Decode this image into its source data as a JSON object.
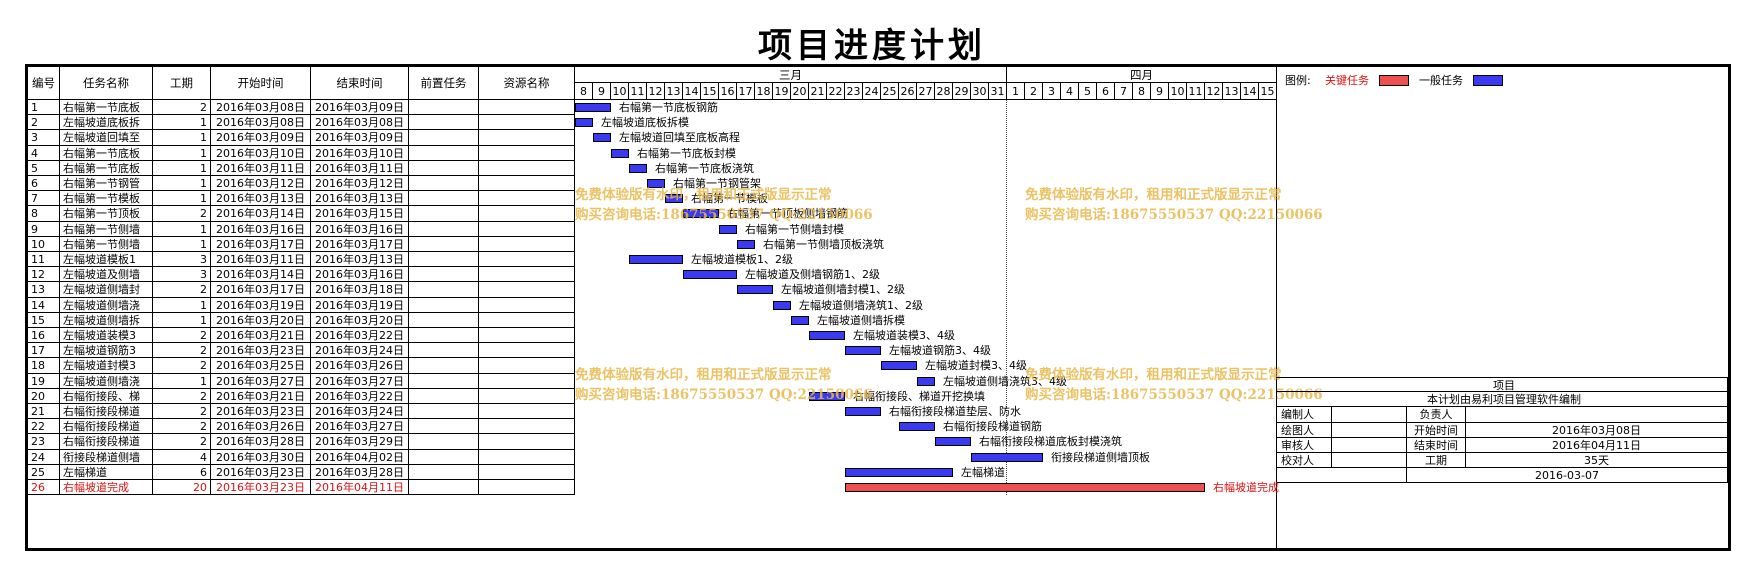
{
  "title": "项目进度计划",
  "columns": [
    "编号",
    "任务名称",
    "工期",
    "开始时间",
    "结束时间",
    "前置任务",
    "资源名称"
  ],
  "months": [
    {
      "label": "三月",
      "days": [
        "8",
        "9",
        "10",
        "11",
        "12",
        "13",
        "14",
        "15",
        "16",
        "17",
        "18",
        "19",
        "20",
        "21",
        "22",
        "23",
        "24",
        "25",
        "26",
        "27",
        "28",
        "29",
        "30",
        "31"
      ]
    },
    {
      "label": "四月",
      "days": [
        "1",
        "2",
        "3",
        "4",
        "5",
        "6",
        "7",
        "8",
        "9",
        "10",
        "11",
        "12",
        "13",
        "14",
        "15"
      ]
    }
  ],
  "legend": {
    "label": "图例:",
    "critical": "关键任务",
    "normal": "一般任务",
    "critical_color": "#ee5050",
    "normal_color": "#3a3af0"
  },
  "tasks": [
    {
      "id": "1",
      "name": "右幅第一节底板钢筋",
      "short": "右幅第一节底板",
      "duration": "2",
      "start": "2016年03月08日",
      "end": "2016年03月09日"
    },
    {
      "id": "2",
      "name": "左幅坡道底板拆模",
      "short": "左幅坡道底板拆",
      "duration": "1",
      "start": "2016年03月08日",
      "end": "2016年03月08日"
    },
    {
      "id": "3",
      "name": "左幅坡道回填至底板高程",
      "short": "左幅坡道回填至",
      "duration": "1",
      "start": "2016年03月09日",
      "end": "2016年03月09日"
    },
    {
      "id": "4",
      "name": "右幅第一节底板封模",
      "short": "右幅第一节底板",
      "duration": "1",
      "start": "2016年03月10日",
      "end": "2016年03月10日"
    },
    {
      "id": "5",
      "name": "右幅第一节底板浇筑",
      "short": "右幅第一节底板",
      "duration": "1",
      "start": "2016年03月11日",
      "end": "2016年03月11日"
    },
    {
      "id": "6",
      "name": "右幅第一节钢管架",
      "short": "右幅第一节钢管",
      "duration": "1",
      "start": "2016年03月12日",
      "end": "2016年03月12日"
    },
    {
      "id": "7",
      "name": "右幅第一节模板",
      "short": "右幅第一节模板",
      "duration": "1",
      "start": "2016年03月13日",
      "end": "2016年03月13日"
    },
    {
      "id": "8",
      "name": "右幅第一节顶板侧墙钢筋",
      "short": "右幅第一节顶板",
      "duration": "2",
      "start": "2016年03月14日",
      "end": "2016年03月15日"
    },
    {
      "id": "9",
      "name": "右幅第一节侧墙封模",
      "short": "右幅第一节侧墙",
      "duration": "1",
      "start": "2016年03月16日",
      "end": "2016年03月16日"
    },
    {
      "id": "10",
      "name": "右幅第一节侧墙顶板浇筑",
      "short": "右幅第一节侧墙",
      "duration": "1",
      "start": "2016年03月17日",
      "end": "2016年03月17日"
    },
    {
      "id": "11",
      "name": "左幅坡道模板1、2级",
      "short": "左幅坡道模板1",
      "duration": "3",
      "start": "2016年03月11日",
      "end": "2016年03月13日"
    },
    {
      "id": "12",
      "name": "左幅坡道及侧墙钢筋1、2级",
      "short": "左幅坡道及侧墙",
      "duration": "3",
      "start": "2016年03月14日",
      "end": "2016年03月16日"
    },
    {
      "id": "13",
      "name": "左幅坡道侧墙封模1、2级",
      "short": "左幅坡道侧墙封",
      "duration": "2",
      "start": "2016年03月17日",
      "end": "2016年03月18日"
    },
    {
      "id": "14",
      "name": "左幅坡道侧墙浇筑1、2级",
      "short": "左幅坡道侧墙浇",
      "duration": "1",
      "start": "2016年03月19日",
      "end": "2016年03月19日"
    },
    {
      "id": "15",
      "name": "左幅坡道侧墙拆模",
      "short": "左幅坡道侧墙拆",
      "duration": "1",
      "start": "2016年03月20日",
      "end": "2016年03月20日"
    },
    {
      "id": "16",
      "name": "左幅坡道装模3、4级",
      "short": "左幅坡道装模3",
      "duration": "2",
      "start": "2016年03月21日",
      "end": "2016年03月22日"
    },
    {
      "id": "17",
      "name": "左幅坡道钢筋3、4级",
      "short": "左幅坡道钢筋3",
      "duration": "2",
      "start": "2016年03月23日",
      "end": "2016年03月24日"
    },
    {
      "id": "18",
      "name": "左幅坡道封模3、4级",
      "short": "左幅坡道封模3",
      "duration": "2",
      "start": "2016年03月25日",
      "end": "2016年03月26日"
    },
    {
      "id": "19",
      "name": "左幅坡道侧墙浇筑3、4级",
      "short": "左幅坡道侧墙浇",
      "duration": "1",
      "start": "2016年03月27日",
      "end": "2016年03月27日"
    },
    {
      "id": "20",
      "name": "右幅衔接段、梯道开挖换填",
      "short": "右幅衔接段、梯",
      "duration": "2",
      "start": "2016年03月21日",
      "end": "2016年03月22日"
    },
    {
      "id": "21",
      "name": "右幅衔接段梯道垫层、防水",
      "short": "右幅衔接段梯道",
      "duration": "2",
      "start": "2016年03月23日",
      "end": "2016年03月24日"
    },
    {
      "id": "22",
      "name": "右幅衔接段梯道钢筋",
      "short": "右幅衔接段梯道",
      "duration": "2",
      "start": "2016年03月26日",
      "end": "2016年03月27日"
    },
    {
      "id": "23",
      "name": "右幅衔接段梯道底板封模浇筑",
      "short": "右幅衔接段梯道",
      "duration": "2",
      "start": "2016年03月28日",
      "end": "2016年03月29日"
    },
    {
      "id": "24",
      "name": "衔接段梯道侧墙顶板",
      "short": "衔接段梯道侧墙",
      "duration": "4",
      "start": "2016年03月30日",
      "end": "2016年04月02日"
    },
    {
      "id": "25",
      "name": "左幅梯道",
      "short": "左幅梯道",
      "duration": "6",
      "start": "2016年03月23日",
      "end": "2016年03月28日"
    },
    {
      "id": "26",
      "name": "右幅坡道完成",
      "short": "右幅坡道完成",
      "duration": "20",
      "start": "2016年03月23日",
      "end": "2016年04月11日",
      "critical": true
    }
  ],
  "chart_data": {
    "type": "gantt",
    "x_axis": {
      "start": "2016-03-08",
      "end": "2016-04-15",
      "months": [
        "三月",
        "四月"
      ]
    },
    "series": [
      {
        "name": "右幅第一节底板钢筋",
        "start": "2016-03-08",
        "end": "2016-03-09",
        "category": "一般任务"
      },
      {
        "name": "左幅坡道底板拆模",
        "start": "2016-03-08",
        "end": "2016-03-08",
        "category": "一般任务"
      },
      {
        "name": "左幅坡道回填至底板高程",
        "start": "2016-03-09",
        "end": "2016-03-09",
        "category": "一般任务"
      },
      {
        "name": "右幅第一节底板封模",
        "start": "2016-03-10",
        "end": "2016-03-10",
        "category": "一般任务"
      },
      {
        "name": "右幅第一节底板浇筑",
        "start": "2016-03-11",
        "end": "2016-03-11",
        "category": "一般任务"
      },
      {
        "name": "右幅第一节钢管架",
        "start": "2016-03-12",
        "end": "2016-03-12",
        "category": "一般任务"
      },
      {
        "name": "右幅第一节模板",
        "start": "2016-03-13",
        "end": "2016-03-13",
        "category": "一般任务"
      },
      {
        "name": "右幅第一节顶板侧墙钢筋",
        "start": "2016-03-14",
        "end": "2016-03-15",
        "category": "一般任务"
      },
      {
        "name": "右幅第一节侧墙封模",
        "start": "2016-03-16",
        "end": "2016-03-16",
        "category": "一般任务"
      },
      {
        "name": "右幅第一节侧墙顶板浇筑",
        "start": "2016-03-17",
        "end": "2016-03-17",
        "category": "一般任务"
      },
      {
        "name": "左幅坡道模板1、2级",
        "start": "2016-03-11",
        "end": "2016-03-13",
        "category": "一般任务"
      },
      {
        "name": "左幅坡道及侧墙钢筋1、2级",
        "start": "2016-03-14",
        "end": "2016-03-16",
        "category": "一般任务"
      },
      {
        "name": "左幅坡道侧墙封模1、2级",
        "start": "2016-03-17",
        "end": "2016-03-18",
        "category": "一般任务"
      },
      {
        "name": "左幅坡道侧墙浇筑1、2级",
        "start": "2016-03-19",
        "end": "2016-03-19",
        "category": "一般任务"
      },
      {
        "name": "左幅坡道侧墙拆模",
        "start": "2016-03-20",
        "end": "2016-03-20",
        "category": "一般任务"
      },
      {
        "name": "左幅坡道装模3、4级",
        "start": "2016-03-21",
        "end": "2016-03-22",
        "category": "一般任务"
      },
      {
        "name": "左幅坡道钢筋3、4级",
        "start": "2016-03-23",
        "end": "2016-03-24",
        "category": "一般任务"
      },
      {
        "name": "左幅坡道封模3、4级",
        "start": "2016-03-25",
        "end": "2016-03-26",
        "category": "一般任务"
      },
      {
        "name": "左幅坡道侧墙浇筑3、4级",
        "start": "2016-03-27",
        "end": "2016-03-27",
        "category": "一般任务"
      },
      {
        "name": "右幅衔接段、梯道开挖换填",
        "start": "2016-03-21",
        "end": "2016-03-22",
        "category": "一般任务"
      },
      {
        "name": "右幅衔接段梯道垫层、防水",
        "start": "2016-03-23",
        "end": "2016-03-24",
        "category": "一般任务"
      },
      {
        "name": "右幅衔接段梯道钢筋",
        "start": "2016-03-26",
        "end": "2016-03-27",
        "category": "一般任务"
      },
      {
        "name": "右幅衔接段梯道底板封模浇筑",
        "start": "2016-03-28",
        "end": "2016-03-29",
        "category": "一般任务"
      },
      {
        "name": "衔接段梯道侧墙顶板",
        "start": "2016-03-30",
        "end": "2016-04-02",
        "category": "一般任务"
      },
      {
        "name": "左幅梯道",
        "start": "2016-03-23",
        "end": "2016-03-28",
        "category": "一般任务"
      },
      {
        "name": "右幅坡道完成",
        "start": "2016-03-23",
        "end": "2016-04-11",
        "category": "关键任务"
      }
    ]
  },
  "watermark": {
    "line1": "免费体验版有水印，租用和正式版显示正常",
    "line2": "购买咨询电话:18675550537 QQ:22150066"
  },
  "info": {
    "project_label": "项目",
    "note": "本计划由易利项目管理软件编制",
    "editor": "编制人",
    "owner": "负责人",
    "drawer": "绘图人",
    "start_label": "开始时间",
    "start_value": "2016年03月08日",
    "reviewer": "审核人",
    "end_label": "结束时间",
    "end_value": "2016年04月11日",
    "checker": "校对人",
    "duration_label": "工期",
    "duration_value": "35天",
    "date": "2016-03-07"
  }
}
